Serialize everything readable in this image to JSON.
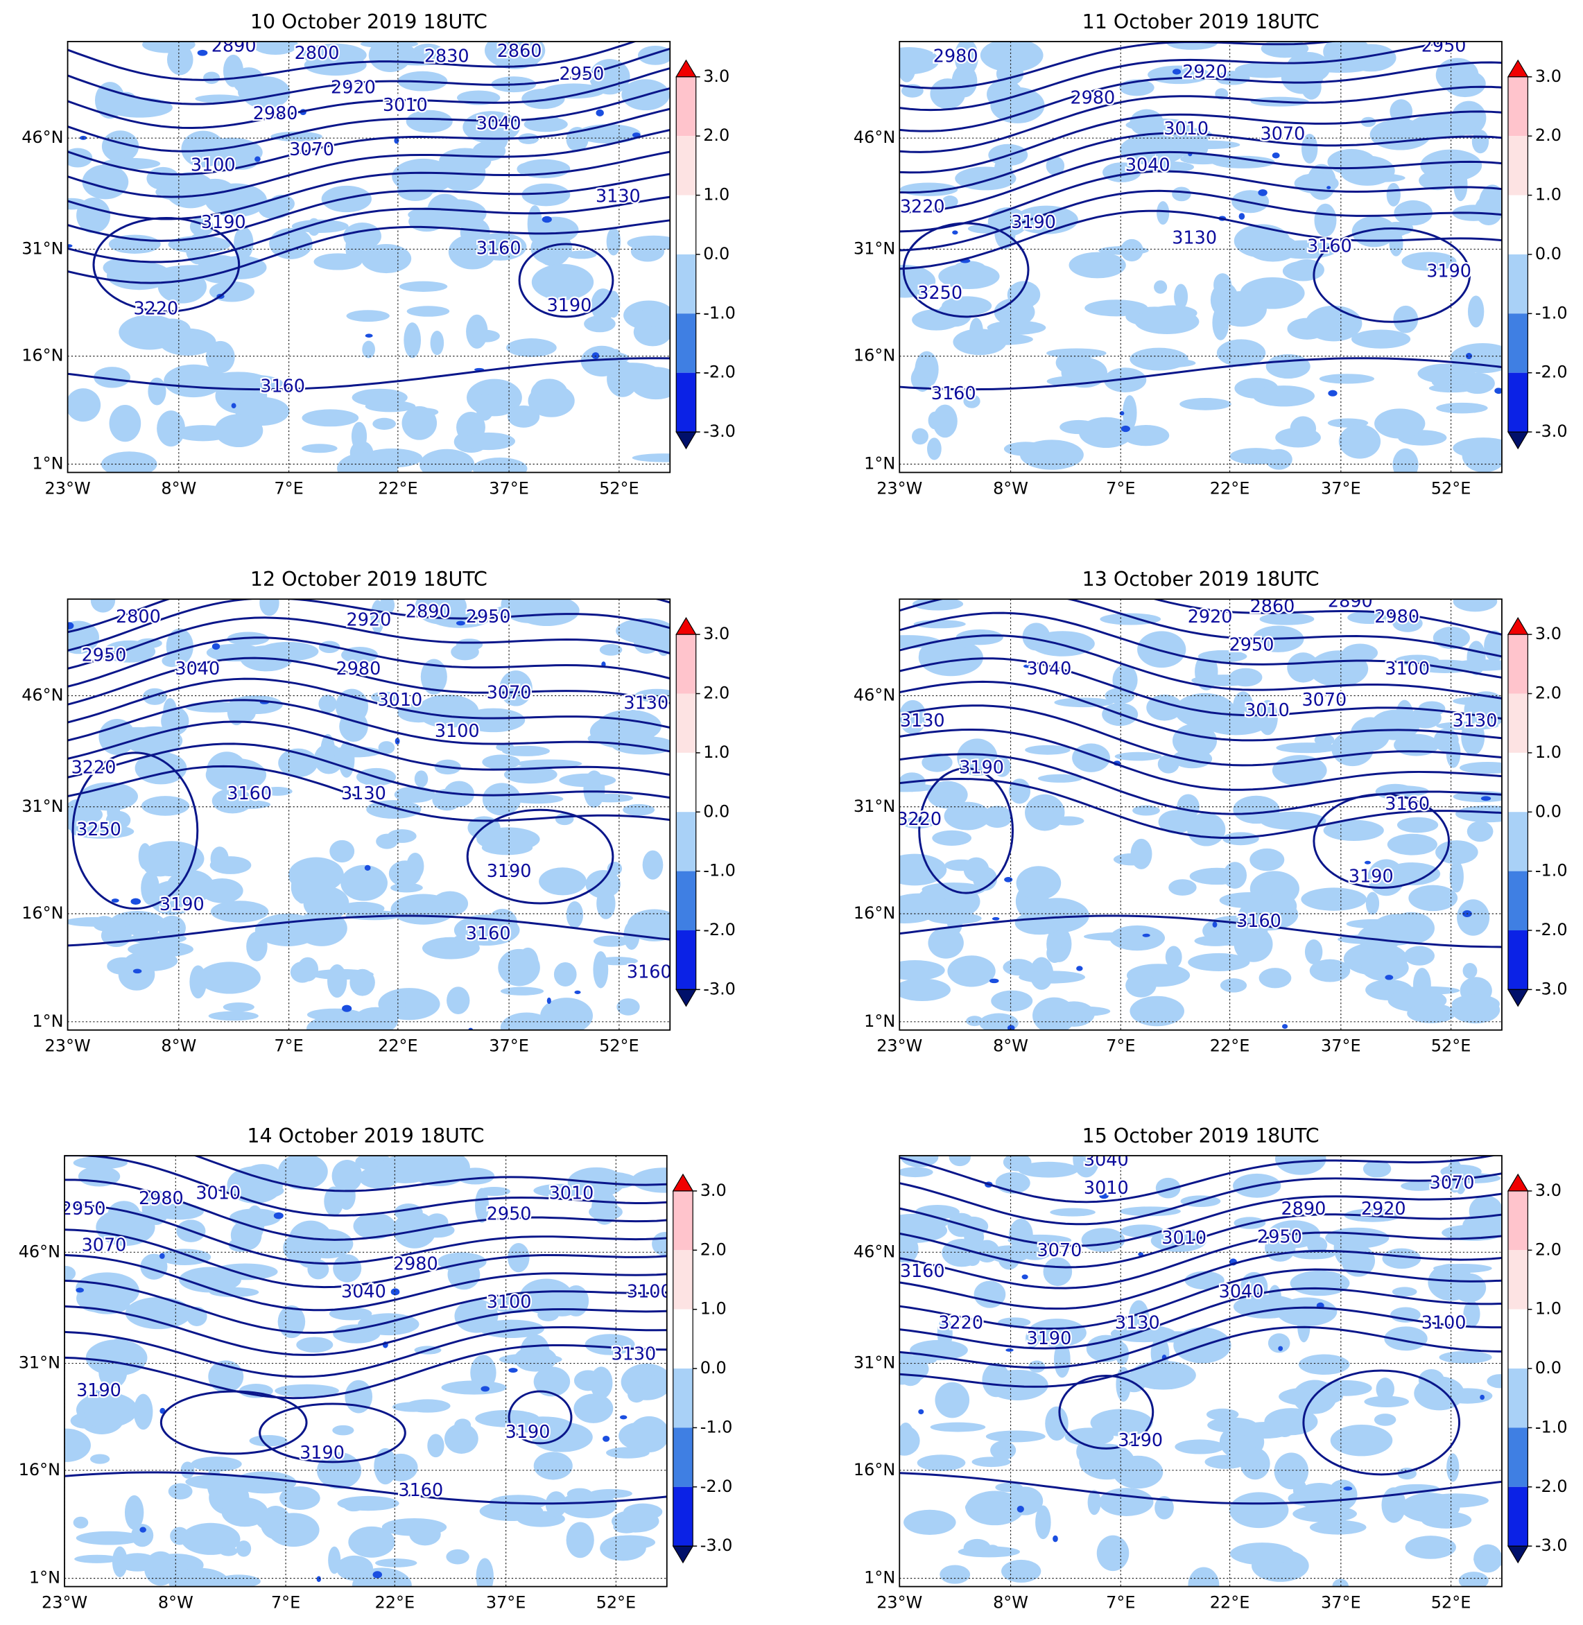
{
  "panels": [
    {
      "title": "10 October 2019 18UTC",
      "contour_labels": [
        2890,
        2800,
        2830,
        2860,
        2950,
        2920,
        2980,
        3010,
        3040,
        3070,
        3100,
        3130,
        3190,
        3160,
        3220,
        3190,
        3160
      ]
    },
    {
      "title": "11 October 2019 18UTC",
      "contour_labels": [
        2980,
        2920,
        2950,
        2980,
        3010,
        3070,
        3040,
        3190,
        3220,
        3130,
        3160,
        3190,
        3250,
        3160
      ]
    },
    {
      "title": "12 October 2019 18UTC",
      "contour_labels": [
        2800,
        2920,
        2890,
        2950,
        2950,
        3040,
        2980,
        3010,
        3070,
        3130,
        3100,
        3220,
        3160,
        3250,
        3130,
        3190,
        3190,
        3160,
        3160
      ]
    },
    {
      "title": "13 October 2019 18UTC",
      "contour_labels": [
        2860,
        2890,
        2920,
        2980,
        2950,
        3040,
        3100,
        3010,
        3070,
        3130,
        3130,
        3190,
        3160,
        3220,
        3190,
        3160
      ]
    },
    {
      "title": "14 October 2019 18UTC",
      "contour_labels": [
        2950,
        2980,
        3010,
        3070,
        2950,
        3010,
        2980,
        3040,
        3100,
        3100,
        3130,
        3190,
        3190,
        3190,
        3160
      ]
    },
    {
      "title": "15 October 2019 18UTC",
      "contour_labels": [
        3040,
        3010,
        2890,
        2920,
        3070,
        2950,
        3070,
        3010,
        3160,
        3220,
        3040,
        3190,
        3130,
        3100,
        3190
      ]
    }
  ],
  "lat_labels": [
    "46°N",
    "31°N",
    "16°N",
    "1°N"
  ],
  "lon_labels": [
    "23°W",
    "8°W",
    "7°E",
    "22°E",
    "37°E",
    "52°E"
  ],
  "colorbar_ticks": [
    {
      "value": 3,
      "label": "3.0"
    },
    {
      "value": 2,
      "label": "2.0"
    },
    {
      "value": 1,
      "label": "1.0"
    },
    {
      "value": 0,
      "label": "0.0"
    },
    {
      "value": -1,
      "label": "-1.0"
    },
    {
      "value": -2,
      "label": "-2.0"
    },
    {
      "value": -3,
      "label": "-3.0"
    }
  ]
}
